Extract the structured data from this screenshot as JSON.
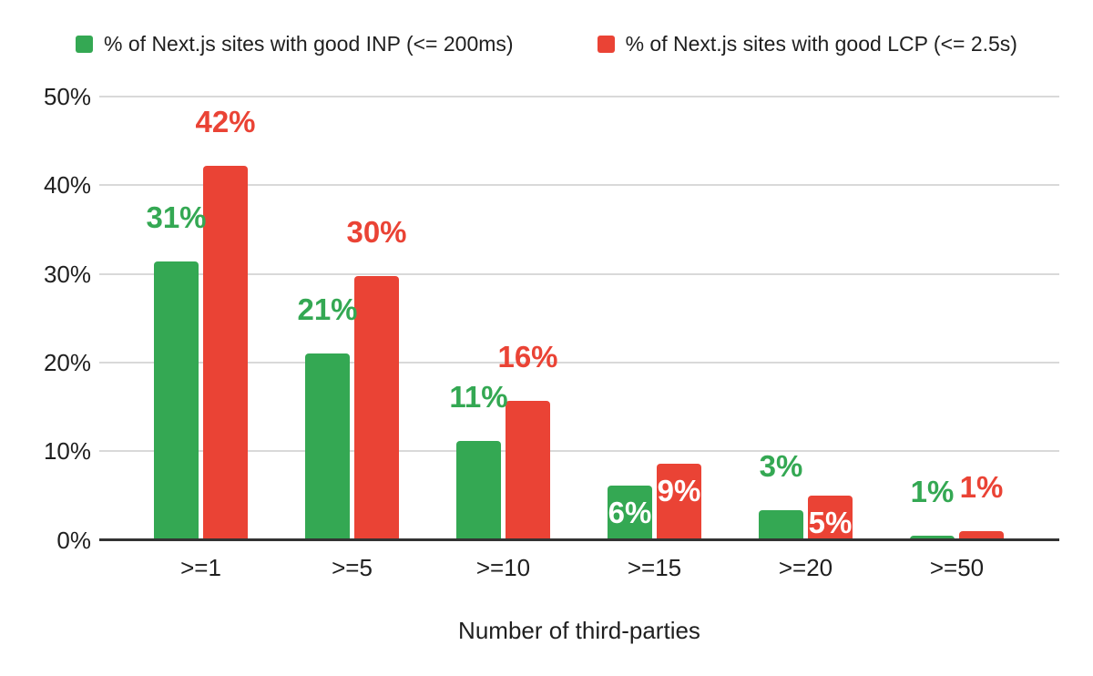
{
  "colors": {
    "inp_green": "#34a853",
    "lcp_red": "#ea4335",
    "gridline": "#d9d9d9",
    "axis_line": "#333333",
    "text": "#1f1f1f",
    "inside_label": "#ffffff",
    "background": "#ffffff"
  },
  "chart_data": {
    "type": "bar",
    "title": "",
    "xlabel": "Number of third-parties",
    "ylabel": "",
    "categories": [
      ">=1",
      ">=5",
      ">=10",
      ">=15",
      ">=20",
      ">=50"
    ],
    "series": [
      {
        "name": "% of Next.js sites with good INP (<= 200ms)",
        "color": "#34a853",
        "values": [
          31,
          21,
          11,
          6,
          3,
          1
        ],
        "labels": [
          "31%",
          "21%",
          "11%",
          "6%",
          "3%",
          "1%"
        ],
        "label_placement": [
          "above",
          "above",
          "above",
          "inside",
          "above",
          "above"
        ],
        "bar_heights_pct": [
          31.4,
          21.0,
          11.1,
          6.1,
          3.3,
          0.5
        ]
      },
      {
        "name": "% of Next.js sites with good LCP (<= 2.5s)",
        "color": "#ea4335",
        "values": [
          42,
          30,
          16,
          9,
          5,
          1
        ],
        "labels": [
          "42%",
          "30%",
          "16%",
          "9%",
          "5%",
          "1%"
        ],
        "label_placement": [
          "above",
          "above",
          "above",
          "inside",
          "inside",
          "above"
        ],
        "bar_heights_pct": [
          42.2,
          29.8,
          15.7,
          8.6,
          5.0,
          1.0
        ]
      }
    ],
    "yticks": {
      "labels": [
        "0%",
        "10%",
        "20%",
        "30%",
        "40%",
        "50%"
      ],
      "values": [
        0,
        10,
        20,
        30,
        40,
        50
      ]
    },
    "ylim": [
      0,
      50
    ],
    "grid": true,
    "legend_position": "top"
  }
}
